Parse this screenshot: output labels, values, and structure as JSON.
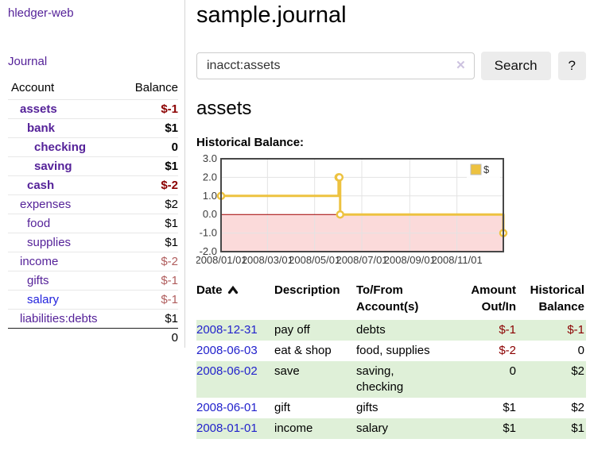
{
  "colors": {
    "link_purple": "#552299",
    "link_blue": "#2222cc",
    "negative_strong": "#8b0000",
    "negative_soft": "#b05d5d",
    "row_green": "#dff0d8",
    "series_yellow": "#edc240",
    "negative_region": "#fbdada",
    "zero_line": "#a00000"
  },
  "sidebar": {
    "brand": "hledger-web",
    "nav": {
      "journal": "Journal"
    },
    "accounts": {
      "headers": {
        "account": "Account",
        "balance": "Balance"
      },
      "rows": [
        {
          "name": "assets",
          "balance": "$-1",
          "depth": 1,
          "bold": true,
          "neg": "strong"
        },
        {
          "name": "bank",
          "balance": "$1",
          "depth": 2,
          "bold": true
        },
        {
          "name": "checking",
          "balance": "0",
          "depth": 3,
          "bold": true
        },
        {
          "name": "saving",
          "balance": "$1",
          "depth": 3,
          "bold": true
        },
        {
          "name": "cash",
          "balance": "$-2",
          "depth": 2,
          "bold": true,
          "neg": "strong"
        },
        {
          "name": "expenses",
          "balance": "$2",
          "depth": 1
        },
        {
          "name": "food",
          "balance": "$1",
          "depth": 2
        },
        {
          "name": "supplies",
          "balance": "$1",
          "depth": 2
        },
        {
          "name": "income",
          "balance": "$-2",
          "depth": 1,
          "neg": "soft"
        },
        {
          "name": "gifts",
          "balance": "$-1",
          "depth": 2,
          "neg": "soft"
        },
        {
          "name": "salary",
          "balance": "$-1",
          "depth": 2,
          "neg": "soft",
          "link_color": "blue"
        },
        {
          "name": "liabilities:debts",
          "balance": "$1",
          "depth": 1
        }
      ],
      "total": "0"
    }
  },
  "main": {
    "title": "sample.journal",
    "search": {
      "value": "inacct:assets",
      "clear_icon": "✕",
      "button": "Search",
      "help": "?"
    },
    "account_heading": "assets"
  },
  "chart_data": {
    "type": "line",
    "title": "Historical Balance:",
    "step": true,
    "series": [
      {
        "name": "$",
        "color": "#edc240",
        "points": [
          [
            "2008-01-01",
            1
          ],
          [
            "2008-06-01",
            2
          ],
          [
            "2008-06-02",
            2
          ],
          [
            "2008-06-03",
            0
          ],
          [
            "2008-12-31",
            -1
          ]
        ]
      }
    ],
    "xlim": [
      "2008-01-01",
      "2008-12-31"
    ],
    "ylim": [
      -2,
      3
    ],
    "x_ticks": [
      "2008/01/01",
      "2008/03/01",
      "2008/05/01",
      "2008/07/01",
      "2008/09/01",
      "2008/11/01"
    ],
    "y_ticks": [
      "3.0",
      "2.0",
      "1.0",
      "0.0",
      "-1.0",
      "-2.0"
    ],
    "grid": true,
    "legend_position": "top-right",
    "negative_region_color": "#fbdada",
    "zero_line_color": "#a00000"
  },
  "register": {
    "headers": {
      "date": "Date",
      "description": "Description",
      "accounts": "To/From\nAccount(s)",
      "amount": "Amount\nOut/In",
      "balance": "Historical\nBalance"
    },
    "rows": [
      {
        "date": "2008-12-31",
        "description": "pay off",
        "accounts": "debts",
        "amount": "$-1",
        "balance": "$-1"
      },
      {
        "date": "2008-06-03",
        "description": "eat & shop",
        "accounts": "food, supplies",
        "amount": "$-2",
        "balance": "0"
      },
      {
        "date": "2008-06-02",
        "description": "save",
        "accounts": "saving,\nchecking",
        "amount": "0",
        "balance": "$2"
      },
      {
        "date": "2008-06-01",
        "description": "gift",
        "accounts": "gifts",
        "amount": "$1",
        "balance": "$2"
      },
      {
        "date": "2008-01-01",
        "description": "income",
        "accounts": "salary",
        "amount": "$1",
        "balance": "$1"
      }
    ]
  }
}
